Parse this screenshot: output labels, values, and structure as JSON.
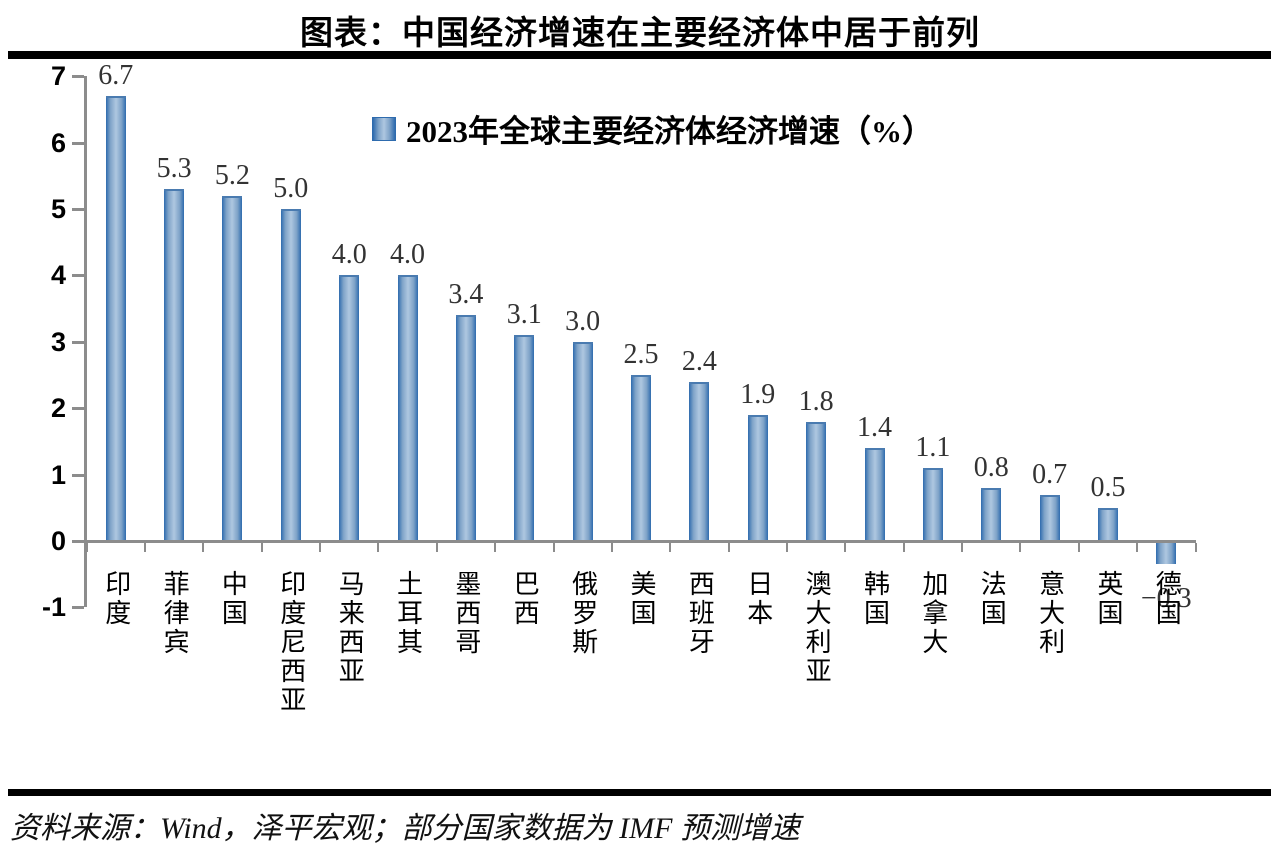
{
  "page": {
    "title": "图表：中国经济增速在主要经济体中居于前列",
    "source": "资料来源：Wind，泽平宏观；部分国家数据为 IMF 预测增速"
  },
  "legend": {
    "marker": "blue-gradient-square",
    "label": "2023年全球主要经济体经济增速（%）"
  },
  "colors": {
    "bar_edge": "#2e6bae",
    "bar_mid": "#aec7e0",
    "axis": "#8c8c8c",
    "value_label": "#333333",
    "rule": "#000000"
  },
  "chart_data": {
    "type": "bar",
    "title": "2023年全球主要经济体经济增速（%）",
    "categories": [
      "印度",
      "菲律宾",
      "中国",
      "印度尼西亚",
      "马来西亚",
      "土耳其",
      "墨西哥",
      "巴西",
      "俄罗斯",
      "美国",
      "西班牙",
      "日本",
      "澳大利亚",
      "韩国",
      "加拿大",
      "法国",
      "意大利",
      "英国",
      "德国"
    ],
    "values": [
      6.7,
      5.3,
      5.2,
      5.0,
      4.0,
      4.0,
      3.4,
      3.1,
      3.0,
      2.5,
      2.4,
      1.9,
      1.8,
      1.4,
      1.1,
      0.8,
      0.7,
      0.5,
      -0.3
    ],
    "value_labels": [
      "6.7",
      "5.3",
      "5.2",
      "5.0",
      "4.0",
      "4.0",
      "3.4",
      "3.1",
      "3.0",
      "2.5",
      "2.4",
      "1.9",
      "1.8",
      "1.4",
      "1.1",
      "0.8",
      "0.7",
      "0.5",
      "−0.3"
    ],
    "xlabel": "",
    "ylabel": "",
    "unit": "%",
    "y_ticks": [
      "7",
      "6",
      "5",
      "4",
      "3",
      "2",
      "1",
      "0",
      "-1"
    ],
    "ylim": [
      -1,
      7
    ],
    "grid": false,
    "legend_position": "top-center"
  }
}
